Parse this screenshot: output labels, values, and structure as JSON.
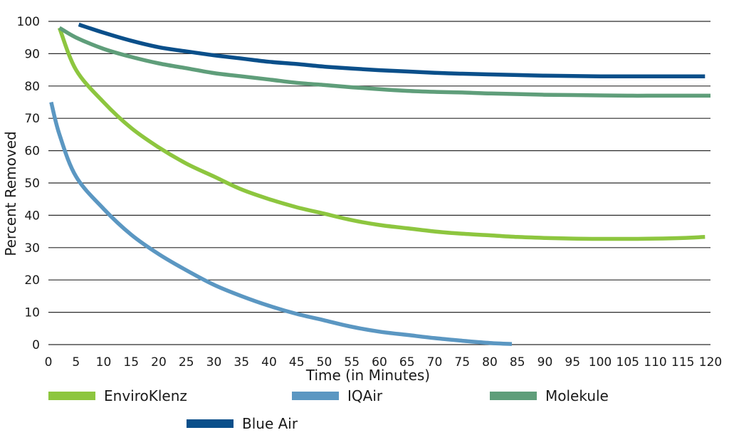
{
  "chart_data": {
    "type": "line",
    "title": "",
    "xlabel": "Time (in Minutes)",
    "ylabel": "Percent Removed",
    "xlim": [
      0,
      120
    ],
    "ylim": [
      0,
      100
    ],
    "x_ticks": [
      0,
      5,
      10,
      15,
      20,
      25,
      30,
      35,
      40,
      45,
      50,
      55,
      60,
      65,
      70,
      75,
      80,
      85,
      90,
      95,
      100,
      105,
      110,
      115,
      120
    ],
    "y_ticks": [
      0,
      10,
      20,
      30,
      40,
      50,
      60,
      70,
      80,
      90,
      100
    ],
    "grid": "horizontal",
    "legend_position": "bottom",
    "series": [
      {
        "name": "EnviroKlenz",
        "color": "#8DC63F",
        "x": [
          2,
          5,
          10,
          15,
          20,
          25,
          30,
          35,
          40,
          45,
          50,
          55,
          60,
          65,
          70,
          75,
          80,
          85,
          90,
          95,
          100,
          105,
          110,
          115,
          119
        ],
        "y": [
          98,
          85,
          75,
          67,
          61,
          56,
          52,
          48,
          45,
          42.5,
          40.5,
          38.5,
          37,
          36,
          35,
          34.3,
          33.8,
          33.3,
          33,
          32.8,
          32.7,
          32.7,
          32.8,
          33,
          33.3
        ]
      },
      {
        "name": "IQAir",
        "color": "#5B97C2",
        "x": [
          0.5,
          2,
          5,
          10,
          15,
          20,
          25,
          30,
          35,
          40,
          45,
          50,
          55,
          60,
          65,
          70,
          75,
          80,
          84
        ],
        "y": [
          75,
          65,
          52,
          42,
          34,
          28,
          23,
          18.5,
          15,
          12,
          9.5,
          7.5,
          5.5,
          4,
          3,
          2,
          1.2,
          0.5,
          0.2
        ]
      },
      {
        "name": "Molekule",
        "color": "#5F9E7A",
        "x": [
          2,
          5,
          10,
          15,
          20,
          25,
          30,
          35,
          40,
          45,
          50,
          55,
          60,
          65,
          70,
          75,
          80,
          85,
          90,
          95,
          100,
          105,
          110,
          115,
          120
        ],
        "y": [
          98,
          95,
          91.5,
          89,
          87,
          85.5,
          84,
          83,
          82,
          81,
          80.3,
          79.6,
          79,
          78.5,
          78.2,
          78,
          77.7,
          77.5,
          77.3,
          77.2,
          77.1,
          77,
          77,
          77,
          77
        ]
      },
      {
        "name": "Blue Air",
        "color": "#0A4F8A",
        "x": [
          5.5,
          10,
          15,
          20,
          25,
          30,
          35,
          40,
          45,
          50,
          55,
          60,
          65,
          70,
          75,
          80,
          85,
          90,
          95,
          100,
          105,
          110,
          115,
          119
        ],
        "y": [
          99,
          96.5,
          94,
          92,
          90.7,
          89.5,
          88.5,
          87.5,
          86.8,
          86,
          85.4,
          84.9,
          84.5,
          84.1,
          83.8,
          83.6,
          83.4,
          83.2,
          83.1,
          83,
          83,
          83,
          83,
          83
        ]
      }
    ]
  }
}
